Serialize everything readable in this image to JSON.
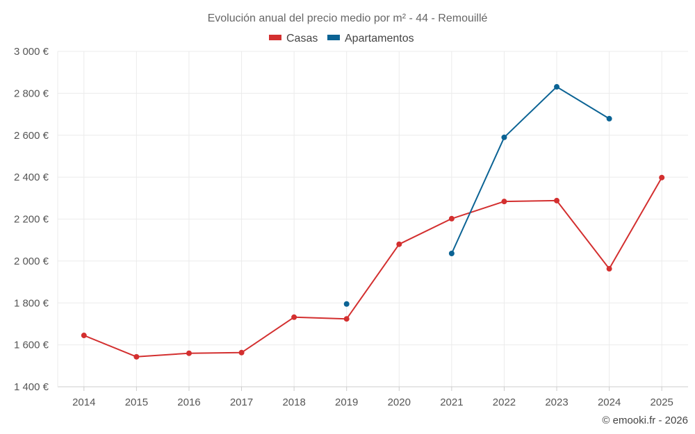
{
  "chart_data": {
    "type": "line",
    "title": "Evolución anual del precio medio por m² - 44 - Remouillé",
    "categories": [
      "2014",
      "2015",
      "2016",
      "2017",
      "2018",
      "2019",
      "2020",
      "2021",
      "2022",
      "2023",
      "2024",
      "2025"
    ],
    "ylim": [
      1400,
      3000
    ],
    "yticks": [
      1400,
      1600,
      1800,
      2000,
      2200,
      2400,
      2600,
      2800,
      3000
    ],
    "ytick_labels": [
      "1 400 €",
      "1 600 €",
      "1 800 €",
      "2 000 €",
      "2 200 €",
      "2 400 €",
      "2 600 €",
      "2 800 €",
      "3 000 €"
    ],
    "grid": true,
    "legend_position": "top-center",
    "series": [
      {
        "name": "Casas",
        "color": "#d32f2f",
        "values": [
          1645,
          1543,
          1560,
          1563,
          1732,
          1724,
          2080,
          2202,
          2284,
          2288,
          1963,
          2398
        ]
      },
      {
        "name": "Apartamentos",
        "color": "#0b6394",
        "values": [
          null,
          null,
          null,
          null,
          null,
          1795,
          null,
          2036,
          2590,
          2831,
          2679,
          null
        ]
      }
    ],
    "credit": "© emooki.fr - 2026"
  }
}
